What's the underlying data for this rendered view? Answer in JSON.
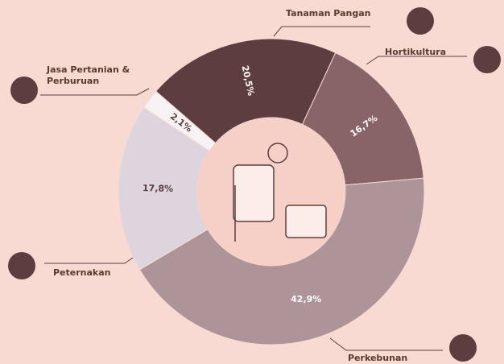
{
  "chart_data": {
    "type": "pie",
    "categories": [
      "Tanaman Pangan",
      "Hortikultura",
      "Perkebunan",
      "Peternakan",
      "Jasa Pertanian & Perburuan"
    ],
    "values": [
      20.5,
      16.7,
      42.9,
      17.8,
      2.1
    ],
    "value_labels": [
      "20,5%",
      "16,7%",
      "42,9%",
      "17,8%",
      "2,1%"
    ],
    "colors": [
      "#5e3d41",
      "#886469",
      "#ad9499",
      "#ddd4dd",
      "#f7f3f4"
    ]
  }
}
